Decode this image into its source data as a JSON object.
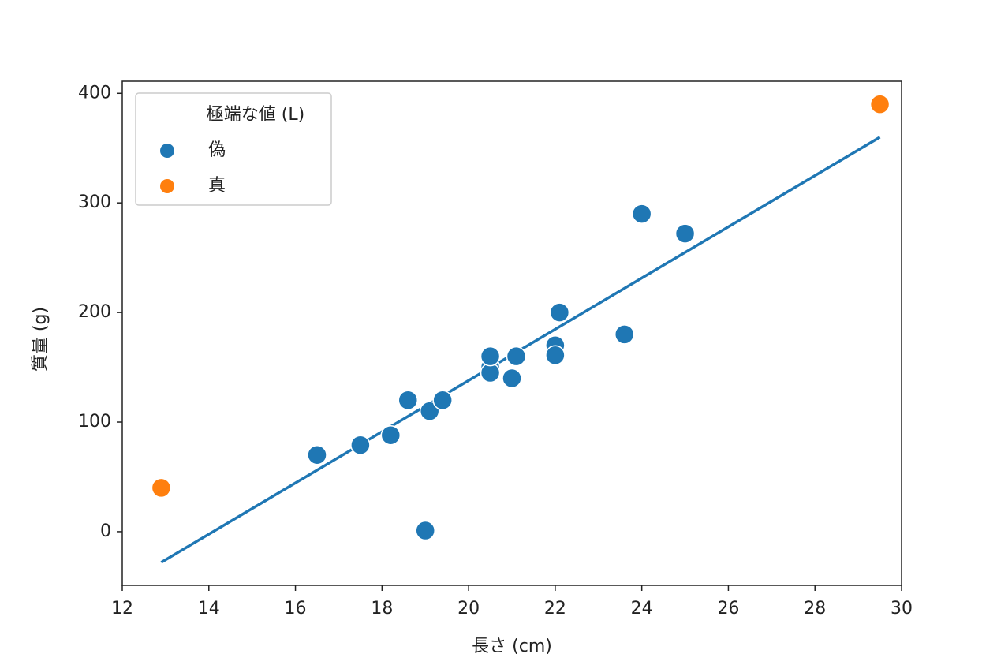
{
  "chart_data": {
    "type": "scatter",
    "xlabel": "長さ (cm)",
    "ylabel": "質量 (g)",
    "legend_title": "極端な値 (L)",
    "legend": "upper left",
    "xlim": [
      12,
      30
    ],
    "xticks": [
      12,
      14,
      16,
      18,
      20,
      22,
      24,
      26,
      28,
      30
    ],
    "ylim": [
      -49,
      411
    ],
    "yticks": [
      0,
      100,
      200,
      300,
      400
    ],
    "series": [
      {
        "name": "偽",
        "color": "#1f77b4",
        "x": [
          16.5,
          17.5,
          18.2,
          18.6,
          19.1,
          19.4,
          19.0,
          20.5,
          20.5,
          20.5,
          21.0,
          21.1,
          22.0,
          22.0,
          22.1,
          23.6,
          24.0,
          25.0
        ],
        "values": [
          70,
          79,
          88,
          120,
          110,
          120,
          1,
          150,
          145,
          160,
          140,
          160,
          170,
          161,
          200,
          180,
          290,
          272
        ]
      },
      {
        "name": "真",
        "color": "#ff7f0e",
        "x": [
          12.9,
          29.5
        ],
        "values": [
          40,
          390
        ]
      }
    ],
    "fit_line": {
      "color": "#1f77b4",
      "x": [
        12.9,
        29.5
      ],
      "values": [
        -28,
        360
      ]
    }
  }
}
